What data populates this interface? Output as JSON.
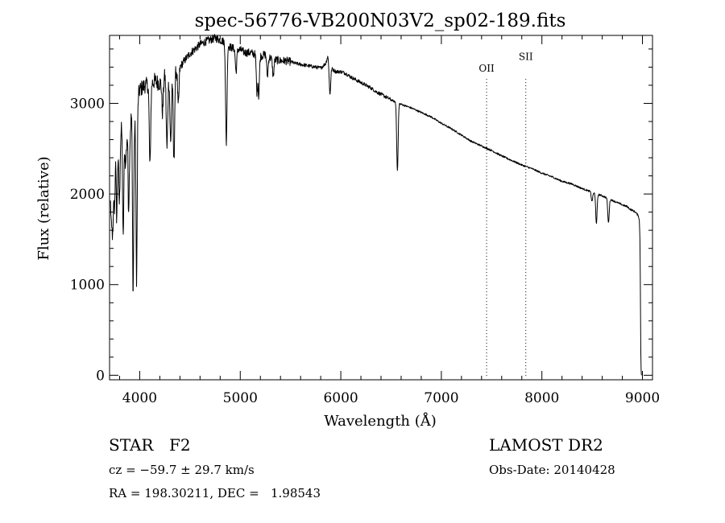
{
  "chart_data": {
    "type": "line",
    "title": "spec-56776-VB200N03V2_sp02-189.fits",
    "xlabel": "Wavelength (Å)",
    "ylabel": "Flux (relative)",
    "xlim": [
      3700,
      9100
    ],
    "ylim": [
      -50,
      3750
    ],
    "xticks": [
      4000,
      5000,
      6000,
      7000,
      8000,
      9000
    ],
    "yticks": [
      0,
      1000,
      2000,
      3000
    ],
    "x_minor_step": 200,
    "y_minor_step": 200,
    "grid": false,
    "series": [
      {
        "name": "spectrum",
        "color": "#000000",
        "anchors": [
          [
            3710,
            1900
          ],
          [
            3720,
            1600
          ],
          [
            3735,
            2050
          ],
          [
            3750,
            2350
          ],
          [
            3765,
            2650
          ],
          [
            3780,
            2400
          ],
          [
            3800,
            2550
          ],
          [
            3830,
            2850
          ],
          [
            3860,
            2300
          ],
          [
            3880,
            2800
          ],
          [
            3900,
            2550
          ],
          [
            3920,
            2950
          ],
          [
            3950,
            2750
          ],
          [
            3980,
            3050
          ],
          [
            4000,
            3150
          ],
          [
            4050,
            3200
          ],
          [
            4100,
            3200
          ],
          [
            4150,
            3250
          ],
          [
            4200,
            3220
          ],
          [
            4250,
            3300
          ],
          [
            4300,
            3250
          ],
          [
            4350,
            3350
          ],
          [
            4400,
            3400
          ],
          [
            4450,
            3480
          ],
          [
            4500,
            3550
          ],
          [
            4550,
            3600
          ],
          [
            4600,
            3650
          ],
          [
            4650,
            3680
          ],
          [
            4700,
            3700
          ],
          [
            4750,
            3720
          ],
          [
            4800,
            3700
          ],
          [
            4840,
            3680
          ],
          [
            4900,
            3620
          ],
          [
            4950,
            3600
          ],
          [
            5000,
            3590
          ],
          [
            5050,
            3560
          ],
          [
            5100,
            3560
          ],
          [
            5150,
            3540
          ],
          [
            5200,
            3520
          ],
          [
            5250,
            3540
          ],
          [
            5300,
            3500
          ],
          [
            5350,
            3480
          ],
          [
            5400,
            3470
          ],
          [
            5450,
            3470
          ],
          [
            5500,
            3460
          ],
          [
            5550,
            3440
          ],
          [
            5600,
            3430
          ],
          [
            5650,
            3420
          ],
          [
            5700,
            3410
          ],
          [
            5750,
            3400
          ],
          [
            5800,
            3390
          ],
          [
            5850,
            3440
          ],
          [
            5870,
            3520
          ],
          [
            5890,
            3400
          ],
          [
            5950,
            3350
          ],
          [
            6000,
            3350
          ],
          [
            6050,
            3330
          ],
          [
            6100,
            3290
          ],
          [
            6150,
            3260
          ],
          [
            6200,
            3230
          ],
          [
            6250,
            3200
          ],
          [
            6300,
            3170
          ],
          [
            6350,
            3130
          ],
          [
            6400,
            3100
          ],
          [
            6450,
            3070
          ],
          [
            6500,
            3040
          ],
          [
            6550,
            3010
          ],
          [
            6600,
            2990
          ],
          [
            6700,
            2950
          ],
          [
            6800,
            2900
          ],
          [
            6900,
            2850
          ],
          [
            7000,
            2780
          ],
          [
            7100,
            2720
          ],
          [
            7200,
            2650
          ],
          [
            7300,
            2580
          ],
          [
            7400,
            2530
          ],
          [
            7500,
            2480
          ],
          [
            7600,
            2420
          ],
          [
            7700,
            2370
          ],
          [
            7800,
            2320
          ],
          [
            7900,
            2280
          ],
          [
            8000,
            2230
          ],
          [
            8100,
            2190
          ],
          [
            8200,
            2140
          ],
          [
            8300,
            2110
          ],
          [
            8400,
            2060
          ],
          [
            8500,
            2020
          ],
          [
            8600,
            1980
          ],
          [
            8700,
            1930
          ],
          [
            8800,
            1880
          ],
          [
            8850,
            1860
          ],
          [
            8880,
            1830
          ],
          [
            8900,
            1820
          ],
          [
            8930,
            1800
          ],
          [
            8960,
            1760
          ],
          [
            8970,
            1700
          ],
          [
            8975,
            1500
          ],
          [
            8980,
            900
          ],
          [
            8985,
            100
          ],
          [
            8990,
            0
          ]
        ],
        "absorption_lines": [
          [
            3734,
            1550
          ],
          [
            3750,
            1850
          ],
          [
            3770,
            1750
          ],
          [
            3798,
            1900
          ],
          [
            3835,
            1500
          ],
          [
            3889,
            1850
          ],
          [
            3934,
            900
          ],
          [
            3969,
            1050
          ],
          [
            4102,
            2300
          ],
          [
            4227,
            2900
          ],
          [
            4271,
            2500
          ],
          [
            4308,
            2550
          ],
          [
            4340,
            2350
          ],
          [
            4384,
            2950
          ],
          [
            4861,
            2550
          ],
          [
            4958,
            3350
          ],
          [
            5167,
            3100
          ],
          [
            5183,
            3080
          ],
          [
            5270,
            3300
          ],
          [
            5328,
            3300
          ],
          [
            5892,
            3100
          ],
          [
            6563,
            2250
          ],
          [
            8498,
            1920
          ],
          [
            8542,
            1680
          ],
          [
            8662,
            1680
          ]
        ]
      }
    ],
    "annotations": [
      {
        "label": "OII",
        "x": 7450
      },
      {
        "label": "SII",
        "x": 7840
      }
    ]
  },
  "info": {
    "object_class": "STAR",
    "subclass": "F2",
    "survey": "LAMOST DR2",
    "redshift": "cz = −59.7 ± 29.7 km/s",
    "obs_date": "Obs-Date: 20140428",
    "coords": "RA = 198.30211, DEC =   1.98543"
  }
}
